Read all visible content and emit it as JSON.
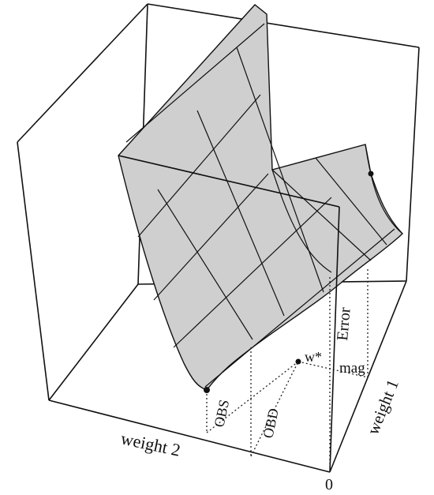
{
  "labels": {
    "error": "Error",
    "mag": "mag",
    "weight1": "weight 1",
    "weight2": "weight 2",
    "obs": "OBS",
    "obd": "OBD",
    "wstar": "w*",
    "origin": "0"
  },
  "colors": {
    "ink": "#111111",
    "surface": "#cfcfcf",
    "paper": "#ffffff"
  }
}
